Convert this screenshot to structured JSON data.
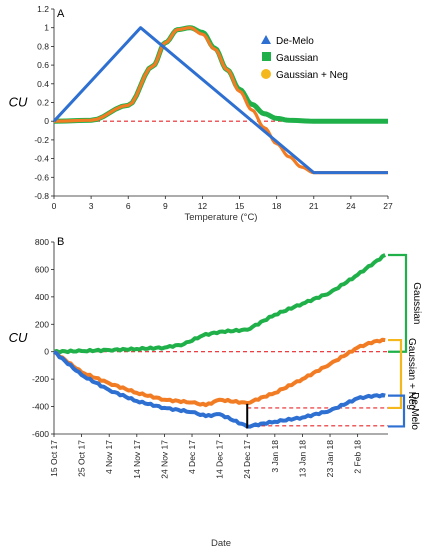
{
  "chart_data": [
    {
      "panel": "A",
      "type": "line",
      "xlabel": "Temperature (°C)",
      "ylabel": "CU",
      "xlim": [
        0,
        27
      ],
      "ylim": [
        -0.8,
        1.2
      ],
      "xticks": [
        0,
        3,
        6,
        9,
        12,
        15,
        18,
        21,
        24,
        27
      ],
      "yticks": [
        -0.8,
        -0.6,
        -0.4,
        -0.2,
        0,
        0.2,
        0.4,
        0.6,
        0.8,
        1,
        1.2
      ],
      "ytick_labels": [
        "-0.8",
        "-0.6",
        "-0.4",
        "-0.2",
        "0",
        "0.2",
        "0.4",
        "0.6",
        "0.8",
        "1",
        "1.2"
      ],
      "grid": false,
      "legend_position": "right",
      "reference_line": {
        "y": 0,
        "style": "dashed",
        "color": "#e8262a"
      },
      "series": [
        {
          "name": "De-Melo",
          "color": "#2e6fd2",
          "marker": "triangle",
          "x": [
            0,
            7,
            21,
            27
          ],
          "y": [
            0,
            1,
            -0.55,
            -0.55
          ]
        },
        {
          "name": "Gaussian",
          "color": "#20b04a",
          "marker": "square",
          "x": [
            0,
            3,
            6,
            8,
            9,
            10,
            11,
            12,
            13,
            14,
            15,
            16,
            17,
            18,
            19,
            21,
            24,
            27
          ],
          "y": [
            0,
            0.01,
            0.17,
            0.59,
            0.84,
            0.98,
            1.0,
            0.95,
            0.78,
            0.55,
            0.34,
            0.18,
            0.08,
            0.03,
            0.01,
            0.0,
            0.0,
            0.0
          ]
        },
        {
          "name": "Gaussian + Neg",
          "color": "#f27c23",
          "marker": "circle",
          "x": [
            0,
            3,
            6,
            8,
            9,
            10,
            11,
            12,
            13,
            14,
            15,
            16,
            17,
            18,
            19,
            20,
            21,
            24,
            27
          ],
          "y": [
            0,
            0.01,
            0.17,
            0.59,
            0.84,
            0.98,
            1.0,
            0.93,
            0.77,
            0.55,
            0.32,
            0.12,
            -0.07,
            -0.24,
            -0.38,
            -0.49,
            -0.55,
            -0.55,
            -0.55
          ]
        }
      ]
    },
    {
      "panel": "B",
      "type": "line",
      "xlabel": "Date",
      "ylabel": "CU",
      "ylim": [
        -600,
        800
      ],
      "yticks": [
        -600,
        -400,
        -200,
        0,
        200,
        400,
        600,
        800
      ],
      "xtick_labels": [
        "15 Oct 17",
        "25 Oct 17",
        "4 Nov 17",
        "14 Nov 17",
        "24 Nov 17",
        "4 Dec 17",
        "14 Dec 17",
        "24 Dec 17",
        "3 Jan 18",
        "13 Jan 18",
        "23 Jan 18",
        "2 Feb 18"
      ],
      "x_range": [
        "15 Oct 17",
        "13 Feb 18"
      ],
      "grid": false,
      "marker_line": {
        "x": "24 Dec 17",
        "y_range": [
          -560,
          -380
        ]
      },
      "series": [
        {
          "name": "Gaussian",
          "color": "#20b04a",
          "x": [
            "15 Oct 17",
            "25 Oct 17",
            "4 Nov 17",
            "14 Nov 17",
            "24 Nov 17",
            "1 Dec 17",
            "8 Dec 17",
            "14 Dec 17",
            "24 Dec 17",
            "3 Jan 18",
            "13 Jan 18",
            "23 Jan 18",
            "2 Feb 18",
            "8 Feb 18",
            "12 Feb 18"
          ],
          "y": [
            0,
            5,
            12,
            20,
            30,
            55,
            120,
            145,
            160,
            270,
            350,
            430,
            560,
            650,
            705
          ]
        },
        {
          "name": "Gaussian + Neg",
          "color": "#f27c23",
          "x": [
            "15 Oct 17",
            "25 Oct 17",
            "4 Nov 17",
            "14 Nov 17",
            "24 Nov 17",
            "4 Dec 17",
            "9 Dec 17",
            "14 Dec 17",
            "24 Dec 17",
            "3 Jan 18",
            "13 Jan 18",
            "23 Jan 18",
            "2 Feb 18",
            "8 Feb 18",
            "12 Feb 18"
          ],
          "y": [
            0,
            -150,
            -230,
            -300,
            -350,
            -370,
            -390,
            -350,
            -375,
            -300,
            -200,
            -90,
            30,
            75,
            85
          ]
        },
        {
          "name": "De-Melo",
          "color": "#2e6fd2",
          "x": [
            "15 Oct 17",
            "25 Oct 17",
            "4 Nov 17",
            "14 Nov 17",
            "24 Nov 17",
            "4 Dec 17",
            "9 Dec 17",
            "14 Dec 17",
            "24 Dec 17",
            "3 Jan 18",
            "13 Jan 18",
            "23 Jan 18",
            "2 Feb 18",
            "8 Feb 18",
            "12 Feb 18"
          ],
          "y": [
            0,
            -170,
            -280,
            -360,
            -410,
            -440,
            -470,
            -455,
            -545,
            -510,
            -480,
            -430,
            -340,
            -320,
            -320
          ]
        }
      ],
      "reference_lines": [
        {
          "y": 0,
          "x_range": [
            "15 Oct 17",
            "13 Feb 18"
          ]
        },
        {
          "y": -410,
          "x_range": [
            "24 Dec 17",
            "13 Feb 18"
          ]
        },
        {
          "y": -540,
          "x_range": [
            "24 Dec 17",
            "13 Feb 18"
          ]
        }
      ],
      "brackets": [
        {
          "label": "Gaussian",
          "color": "#20b04a",
          "y_range": [
            0,
            705
          ]
        },
        {
          "label": "Gaussian + Neg",
          "color": "#f5b81c",
          "y_range": [
            -410,
            85
          ]
        },
        {
          "label": "De-Melo",
          "color": "#2e6fd2",
          "y_range": [
            -545,
            -320
          ]
        }
      ]
    }
  ]
}
